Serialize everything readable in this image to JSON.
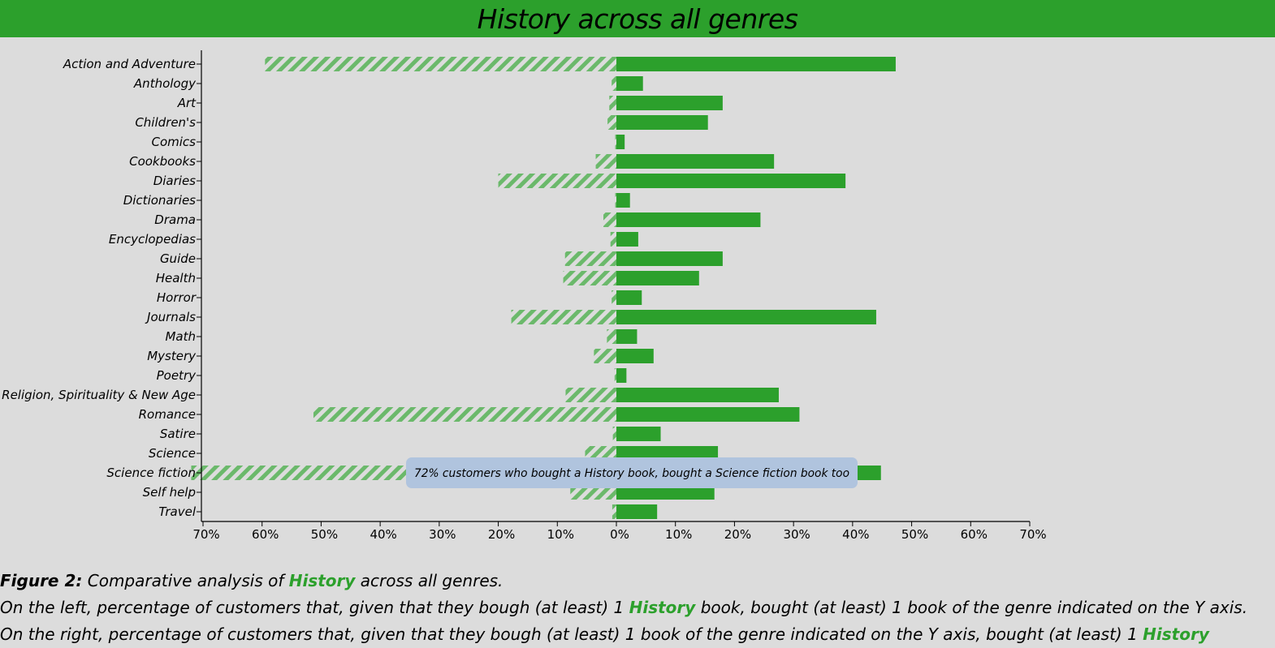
{
  "title": "History across all genres",
  "colors": {
    "accent": "#2ca02c",
    "background": "#dcdcdc",
    "tooltip_bg": "#b0c4de"
  },
  "tooltip": {
    "text": "72% customers who bought a History book, bought a Science fiction book too",
    "category": "Science fiction"
  },
  "caption": {
    "figure_label": "Figure 2:",
    "line1_pre": "Comparative analysis of",
    "genre": "History",
    "line1_post": "across all genres.",
    "line2_pre": "On the left, percentage of customers that, given that they bough (at least) 1",
    "line2_post": "book, bought (at least) 1 book of the genre indicated on the Y axis.",
    "line3_pre": "On the right, percentage of customers that, given that they bough (at least) 1 book of the genre indicated on the Y axis, bought (at least) 1"
  },
  "chart_data": {
    "type": "bar",
    "orientation": "horizontal-diverging",
    "categories": [
      "Action and Adventure",
      "Anthology",
      "Art",
      "Children's",
      "Comics",
      "Cookbooks",
      "Diaries",
      "Dictionaries",
      "Drama",
      "Encyclopedias",
      "Guide",
      "Health",
      "Horror",
      "Journals",
      "Math",
      "Mystery",
      "Poetry",
      "Religion, Spirituality & New Age",
      "Romance",
      "Satire",
      "Science",
      "Science fiction",
      "Self help",
      "Travel"
    ],
    "series": [
      {
        "side": "left",
        "style": "hatched",
        "values": [
          59.5,
          0.8,
          1.2,
          1.5,
          0.2,
          3.5,
          20.0,
          0.2,
          2.2,
          1.0,
          8.7,
          9.0,
          0.8,
          17.8,
          1.6,
          3.8,
          0.3,
          8.6,
          51.3,
          0.6,
          5.3,
          72.0,
          7.8,
          0.7
        ]
      },
      {
        "side": "right",
        "style": "solid",
        "values": [
          47.3,
          4.5,
          18.0,
          15.5,
          1.4,
          26.7,
          38.8,
          2.3,
          24.4,
          3.7,
          18.0,
          14.0,
          4.3,
          44.0,
          3.5,
          6.3,
          1.7,
          27.5,
          31.0,
          7.5,
          17.2,
          44.8,
          16.6,
          6.9
        ]
      }
    ],
    "x_ticks": [
      "70%",
      "60%",
      "50%",
      "40%",
      "30%",
      "20%",
      "10%",
      "0%",
      "10%",
      "20%",
      "30%",
      "40%",
      "50%",
      "60%",
      "70%"
    ],
    "xlim": [
      -70,
      70
    ],
    "grid": false
  }
}
